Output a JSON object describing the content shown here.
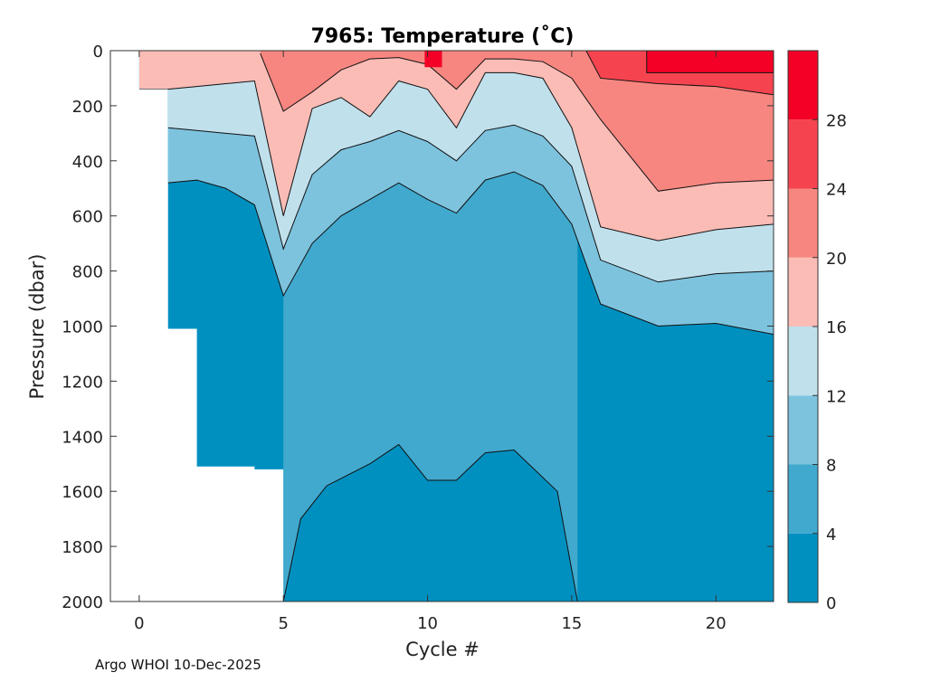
{
  "chart_data": {
    "type": "filled-contour",
    "title": "7965:  Temperature (˚C)",
    "xlabel": "Cycle #",
    "ylabel": "Pressure (dbar)",
    "xlim": [
      -1,
      22
    ],
    "ylim": [
      2000,
      0
    ],
    "xticks": [
      0,
      5,
      10,
      15,
      20
    ],
    "yticks": [
      0,
      200,
      400,
      600,
      800,
      1000,
      1200,
      1400,
      1600,
      1800,
      2000
    ],
    "x_tick_labels": [
      "0",
      "5",
      "10",
      "15",
      "20"
    ],
    "y_tick_labels": [
      "0",
      "200",
      "400",
      "600",
      "800",
      "1000",
      "1200",
      "1400",
      "1600",
      "1800",
      "2000"
    ],
    "colorbar": {
      "levels": [
        0,
        4,
        8,
        12,
        16,
        20,
        24,
        28,
        32
      ],
      "tick_labels": [
        "0",
        "4",
        "8",
        "12",
        "16",
        "20",
        "24",
        "28"
      ],
      "colors": [
        "#0090c0",
        "#41a9ce",
        "#7dc3de",
        "#c0e0ec",
        "#fbbcb6",
        "#f88680",
        "#f5444f",
        "#f40026"
      ]
    },
    "data_extent": {
      "cycles": [
        0,
        22
      ],
      "max_pressure_by_cycle": [
        {
          "cycle": 0,
          "pressure": 140
        },
        {
          "cycle": 1,
          "pressure": 1010
        },
        {
          "cycle": 2,
          "pressure": 1510
        },
        {
          "cycle": 4,
          "pressure": 1520
        },
        {
          "cycle": 5,
          "pressure": 2000
        },
        {
          "cycle": 22,
          "pressure": 2000
        }
      ]
    },
    "isotherms": [
      {
        "label": "4 °C",
        "level": 4,
        "depth_by_cycle": [
          {
            "cycle": 5,
            "pressure": 2000
          },
          {
            "cycle": 5.6,
            "pressure": 1700
          },
          {
            "cycle": 6.5,
            "pressure": 1580
          },
          {
            "cycle": 8,
            "pressure": 1500
          },
          {
            "cycle": 9,
            "pressure": 1430
          },
          {
            "cycle": 10,
            "pressure": 1560
          },
          {
            "cycle": 11,
            "pressure": 1560
          },
          {
            "cycle": 12,
            "pressure": 1460
          },
          {
            "cycle": 13,
            "pressure": 1450
          },
          {
            "cycle": 14.5,
            "pressure": 1600
          },
          {
            "cycle": 15.2,
            "pressure": 2000
          }
        ]
      },
      {
        "label": "8 °C",
        "level": 8,
        "depth_by_cycle": [
          {
            "cycle": 1,
            "pressure": 480
          },
          {
            "cycle": 2,
            "pressure": 470
          },
          {
            "cycle": 3,
            "pressure": 500
          },
          {
            "cycle": 4,
            "pressure": 560
          },
          {
            "cycle": 5,
            "pressure": 890
          },
          {
            "cycle": 6,
            "pressure": 700
          },
          {
            "cycle": 7,
            "pressure": 600
          },
          {
            "cycle": 8,
            "pressure": 540
          },
          {
            "cycle": 9,
            "pressure": 480
          },
          {
            "cycle": 10,
            "pressure": 540
          },
          {
            "cycle": 11,
            "pressure": 590
          },
          {
            "cycle": 12,
            "pressure": 470
          },
          {
            "cycle": 13,
            "pressure": 440
          },
          {
            "cycle": 14,
            "pressure": 490
          },
          {
            "cycle": 15,
            "pressure": 630
          },
          {
            "cycle": 16,
            "pressure": 920
          },
          {
            "cycle": 18,
            "pressure": 1000
          },
          {
            "cycle": 20,
            "pressure": 990
          },
          {
            "cycle": 22,
            "pressure": 1030
          }
        ]
      },
      {
        "label": "12 °C",
        "level": 12,
        "depth_by_cycle": [
          {
            "cycle": 1,
            "pressure": 280
          },
          {
            "cycle": 2,
            "pressure": 290
          },
          {
            "cycle": 3,
            "pressure": 300
          },
          {
            "cycle": 4,
            "pressure": 310
          },
          {
            "cycle": 5,
            "pressure": 720
          },
          {
            "cycle": 6,
            "pressure": 450
          },
          {
            "cycle": 7,
            "pressure": 360
          },
          {
            "cycle": 8,
            "pressure": 330
          },
          {
            "cycle": 9,
            "pressure": 290
          },
          {
            "cycle": 10,
            "pressure": 330
          },
          {
            "cycle": 11,
            "pressure": 400
          },
          {
            "cycle": 12,
            "pressure": 290
          },
          {
            "cycle": 13,
            "pressure": 270
          },
          {
            "cycle": 14,
            "pressure": 310
          },
          {
            "cycle": 15,
            "pressure": 420
          },
          {
            "cycle": 16,
            "pressure": 760
          },
          {
            "cycle": 18,
            "pressure": 840
          },
          {
            "cycle": 20,
            "pressure": 810
          },
          {
            "cycle": 22,
            "pressure": 800
          }
        ]
      },
      {
        "label": "16 °C",
        "level": 16,
        "depth_by_cycle": [
          {
            "cycle": 0,
            "pressure": 140
          },
          {
            "cycle": 1,
            "pressure": 140
          },
          {
            "cycle": 2,
            "pressure": 130
          },
          {
            "cycle": 3,
            "pressure": 120
          },
          {
            "cycle": 4,
            "pressure": 110
          },
          {
            "cycle": 5,
            "pressure": 600
          },
          {
            "cycle": 6,
            "pressure": 210
          },
          {
            "cycle": 7,
            "pressure": 170
          },
          {
            "cycle": 8,
            "pressure": 240
          },
          {
            "cycle": 9,
            "pressure": 110
          },
          {
            "cycle": 10,
            "pressure": 140
          },
          {
            "cycle": 11,
            "pressure": 280
          },
          {
            "cycle": 12,
            "pressure": 80
          },
          {
            "cycle": 13,
            "pressure": 80
          },
          {
            "cycle": 14,
            "pressure": 100
          },
          {
            "cycle": 15,
            "pressure": 280
          },
          {
            "cycle": 16,
            "pressure": 640
          },
          {
            "cycle": 18,
            "pressure": 690
          },
          {
            "cycle": 20,
            "pressure": 650
          },
          {
            "cycle": 22,
            "pressure": 630
          }
        ]
      },
      {
        "label": "20 °C",
        "level": 20,
        "depth_by_cycle": [
          {
            "cycle": 4.2,
            "pressure": 10
          },
          {
            "cycle": 5,
            "pressure": 220
          },
          {
            "cycle": 6,
            "pressure": 150
          },
          {
            "cycle": 7,
            "pressure": 70
          },
          {
            "cycle": 8,
            "pressure": 30
          },
          {
            "cycle": 9,
            "pressure": 25
          },
          {
            "cycle": 10,
            "pressure": 50
          },
          {
            "cycle": 11,
            "pressure": 140
          },
          {
            "cycle": 12,
            "pressure": 30
          },
          {
            "cycle": 13,
            "pressure": 30
          },
          {
            "cycle": 14,
            "pressure": 40
          },
          {
            "cycle": 15,
            "pressure": 100
          },
          {
            "cycle": 16,
            "pressure": 250
          },
          {
            "cycle": 18,
            "pressure": 510
          },
          {
            "cycle": 20,
            "pressure": 480
          },
          {
            "cycle": 22,
            "pressure": 470
          }
        ]
      },
      {
        "label": "24 °C",
        "level": 24,
        "depth_by_cycle": [
          {
            "cycle": 15.5,
            "pressure": 0
          },
          {
            "cycle": 16,
            "pressure": 100
          },
          {
            "cycle": 18,
            "pressure": 120
          },
          {
            "cycle": 20,
            "pressure": 130
          },
          {
            "cycle": 22,
            "pressure": 160
          }
        ]
      },
      {
        "label": "28 °C",
        "level": 28,
        "depth_by_cycle": [
          {
            "cycle": 17.6,
            "pressure": 0
          },
          {
            "cycle": 17.6,
            "pressure": 80
          },
          {
            "cycle": 22,
            "pressure": 80
          }
        ]
      }
    ]
  },
  "footer": {
    "text": "Argo WHOI 10-Dec-2025"
  }
}
